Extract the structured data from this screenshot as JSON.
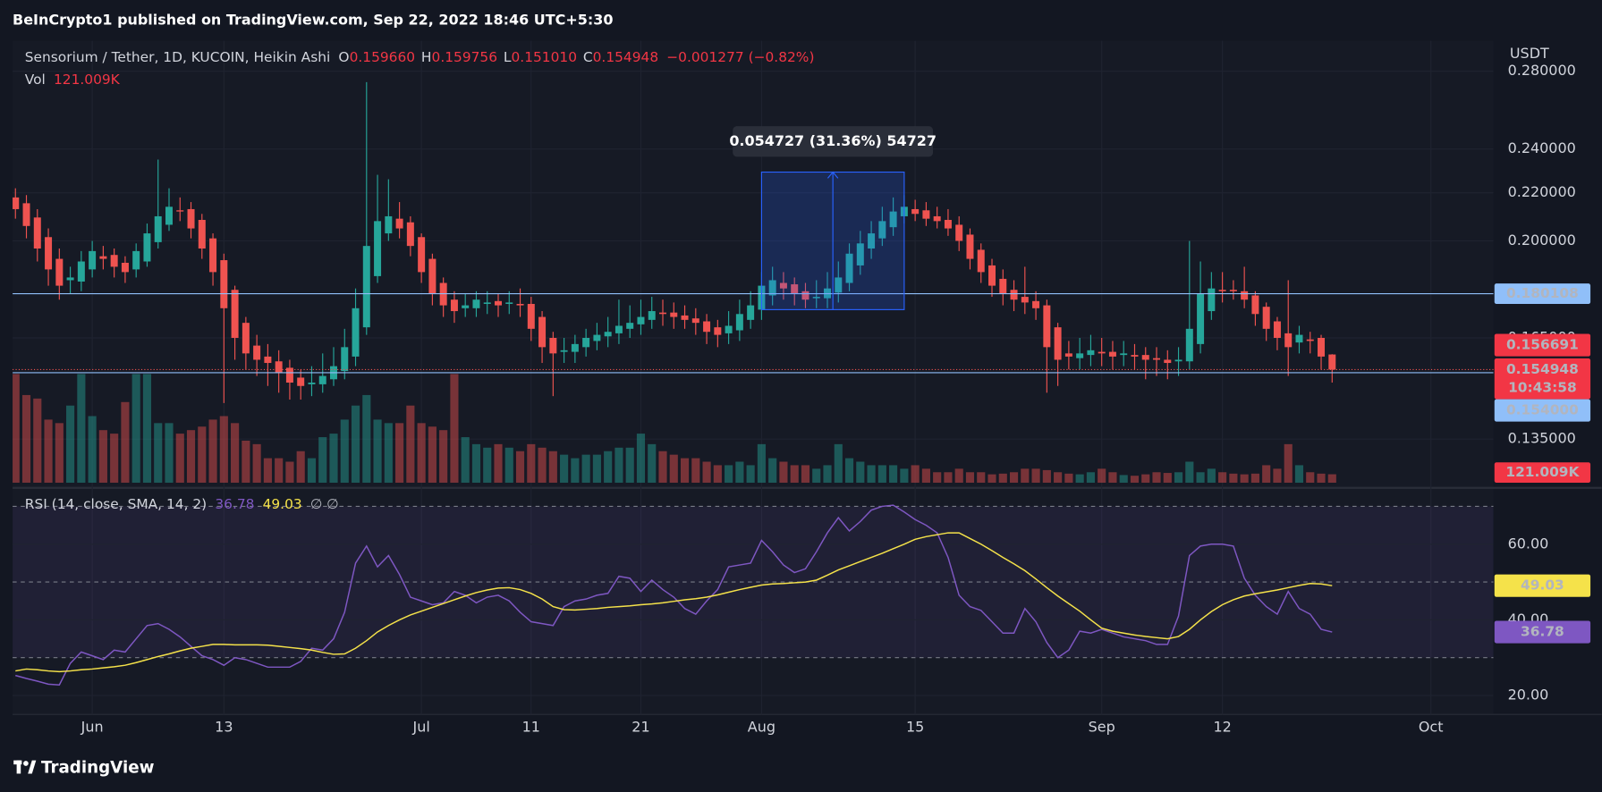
{
  "header": {
    "publisher": "BeInCrypto1 published on TradingView.com, Sep 22, 2022 18:46 UTC+5:30"
  },
  "footer": {
    "brand": "TradingView"
  },
  "chart_data": {
    "type": "candlestick",
    "title": "Sensorium / Tether, 1D, KUCOIN, Heikin Ashi",
    "ohlc_legend": [
      {
        "key": "O",
        "value": "0.159660"
      },
      {
        "key": "H",
        "value": "0.159756"
      },
      {
        "key": "L",
        "value": "0.151010"
      },
      {
        "key": "C",
        "value": "0.154948"
      }
    ],
    "change": "−0.001277 (−0.82%)",
    "volume_title": "Vol",
    "volume_value_label": "121.009K",
    "currency": "USDT",
    "log_scale": true,
    "up_color": "#26a69a",
    "down_color": "#ef5350",
    "open": [
      0.218,
      0.2155,
      0.2095,
      0.2015,
      0.193,
      0.185,
      0.1845,
      0.189,
      0.194,
      0.1945,
      0.1915,
      0.189,
      0.192,
      0.1995,
      0.2065,
      0.2125,
      0.213,
      0.2085,
      0.201,
      0.1925,
      0.1815,
      0.17,
      0.1625,
      0.159,
      0.1575,
      0.1555,
      0.1525,
      0.1505,
      0.1505,
      0.152,
      0.1545,
      0.159,
      0.1685,
      0.1865,
      0.203,
      0.209,
      0.2075,
      0.2015,
      0.193,
      0.184,
      0.178,
      0.175,
      0.175,
      0.1765,
      0.1775,
      0.1765,
      0.1765,
      0.1765,
      0.172,
      0.165,
      0.1605,
      0.1605,
      0.162,
      0.164,
      0.1655,
      0.1665,
      0.168,
      0.1695,
      0.171,
      0.1735,
      0.1735,
      0.1725,
      0.1715,
      0.1705,
      0.1685,
      0.1665,
      0.1675,
      0.171,
      0.1745,
      0.1795,
      0.184,
      0.1835,
      0.181,
      0.1785,
      0.1785,
      0.1805,
      0.184,
      0.1905,
      0.197,
      0.201,
      0.2055,
      0.21,
      0.213,
      0.2125,
      0.21,
      0.2085,
      0.2065,
      0.2025,
      0.1965,
      0.1905,
      0.1855,
      0.1815,
      0.179,
      0.1775,
      0.176,
      0.1685,
      0.16,
      0.1585,
      0.1595,
      0.1605,
      0.1605,
      0.1595,
      0.1595,
      0.1595,
      0.1585,
      0.158,
      0.1575,
      0.1575,
      0.163,
      0.174,
      0.1815,
      0.1815,
      0.181,
      0.1795,
      0.1755,
      0.1705,
      0.1665,
      0.1635,
      0.1645,
      0.165,
      0.15966
    ],
    "high": [
      0.222,
      0.219,
      0.213,
      0.205,
      0.197,
      0.19,
      0.196,
      0.2,
      0.198,
      0.197,
      0.194,
      0.199,
      0.207,
      0.235,
      0.222,
      0.218,
      0.216,
      0.211,
      0.203,
      0.195,
      0.183,
      0.172,
      0.166,
      0.163,
      0.161,
      0.158,
      0.155,
      0.156,
      0.16,
      0.162,
      0.168,
      0.182,
      0.274,
      0.228,
      0.226,
      0.216,
      0.21,
      0.203,
      0.195,
      0.186,
      0.181,
      0.18,
      0.181,
      0.181,
      0.18,
      0.181,
      0.182,
      0.179,
      0.174,
      0.167,
      0.165,
      0.166,
      0.168,
      0.17,
      0.172,
      0.178,
      0.176,
      0.178,
      0.179,
      0.178,
      0.177,
      0.176,
      0.175,
      0.173,
      0.171,
      0.174,
      0.178,
      0.181,
      0.188,
      0.19,
      0.188,
      0.186,
      0.184,
      0.185,
      0.188,
      0.192,
      0.199,
      0.204,
      0.208,
      0.214,
      0.218,
      0.219,
      0.217,
      0.216,
      0.214,
      0.213,
      0.21,
      0.205,
      0.199,
      0.193,
      0.189,
      0.185,
      0.19,
      0.181,
      0.178,
      0.17,
      0.164,
      0.165,
      0.166,
      0.165,
      0.164,
      0.164,
      0.163,
      0.162,
      0.162,
      0.161,
      0.162,
      0.2,
      0.192,
      0.188,
      0.188,
      0.185,
      0.19,
      0.181,
      0.177,
      0.172,
      0.185,
      0.169,
      0.167,
      0.166,
      0.159756
    ],
    "low": [
      0.209,
      0.201,
      0.192,
      0.183,
      0.178,
      0.18,
      0.181,
      0.186,
      0.189,
      0.186,
      0.184,
      0.186,
      0.19,
      0.197,
      0.204,
      0.208,
      0.201,
      0.193,
      0.183,
      0.145,
      0.158,
      0.155,
      0.153,
      0.15,
      0.148,
      0.146,
      0.146,
      0.147,
      0.148,
      0.15,
      0.152,
      0.156,
      0.166,
      0.184,
      0.2,
      0.201,
      0.194,
      0.184,
      0.176,
      0.172,
      0.17,
      0.172,
      0.172,
      0.173,
      0.172,
      0.173,
      0.172,
      0.164,
      0.157,
      0.147,
      0.157,
      0.157,
      0.159,
      0.161,
      0.162,
      0.163,
      0.165,
      0.166,
      0.168,
      0.169,
      0.168,
      0.168,
      0.166,
      0.163,
      0.162,
      0.163,
      0.164,
      0.168,
      0.171,
      0.176,
      0.178,
      0.176,
      0.175,
      0.175,
      0.175,
      0.177,
      0.181,
      0.187,
      0.193,
      0.198,
      0.202,
      0.207,
      0.208,
      0.206,
      0.205,
      0.202,
      0.196,
      0.189,
      0.184,
      0.179,
      0.176,
      0.174,
      0.173,
      0.171,
      0.148,
      0.15,
      0.155,
      0.155,
      0.156,
      0.156,
      0.155,
      0.156,
      0.155,
      0.152,
      0.153,
      0.152,
      0.153,
      0.155,
      0.16,
      0.171,
      0.177,
      0.178,
      0.175,
      0.169,
      0.164,
      0.161,
      0.153,
      0.16,
      0.16,
      0.155,
      0.15101
    ],
    "close": [
      0.213,
      0.206,
      0.197,
      0.189,
      0.183,
      0.186,
      0.192,
      0.196,
      0.193,
      0.19,
      0.188,
      0.196,
      0.203,
      0.21,
      0.214,
      0.212,
      0.205,
      0.197,
      0.188,
      0.175,
      0.165,
      0.16,
      0.158,
      0.157,
      0.154,
      0.151,
      0.15,
      0.151,
      0.153,
      0.156,
      0.162,
      0.175,
      0.198,
      0.208,
      0.21,
      0.205,
      0.198,
      0.188,
      0.18,
      0.176,
      0.174,
      0.176,
      0.178,
      0.177,
      0.176,
      0.177,
      0.176,
      0.168,
      0.162,
      0.16,
      0.161,
      0.163,
      0.165,
      0.166,
      0.167,
      0.169,
      0.17,
      0.172,
      0.174,
      0.173,
      0.172,
      0.171,
      0.17,
      0.167,
      0.166,
      0.169,
      0.173,
      0.176,
      0.183,
      0.185,
      0.182,
      0.18,
      0.178,
      0.179,
      0.182,
      0.186,
      0.195,
      0.199,
      0.203,
      0.208,
      0.212,
      0.214,
      0.211,
      0.209,
      0.208,
      0.205,
      0.2,
      0.193,
      0.188,
      0.183,
      0.18,
      0.178,
      0.177,
      0.175,
      0.162,
      0.158,
      0.159,
      0.16,
      0.161,
      0.16,
      0.159,
      0.16,
      0.159,
      0.158,
      0.158,
      0.157,
      0.158,
      0.168,
      0.18,
      0.182,
      0.181,
      0.181,
      0.178,
      0.173,
      0.168,
      0.165,
      0.162,
      0.166,
      0.164,
      0.159,
      0.154948
    ],
    "volume": [
      1550000,
      1250000,
      1200000,
      900000,
      850000,
      1100000,
      1550000,
      950000,
      750000,
      700000,
      1150000,
      1550000,
      1550000,
      850000,
      850000,
      700000,
      750000,
      800000,
      900000,
      950000,
      850000,
      600000,
      550000,
      350000,
      350000,
      300000,
      450000,
      350000,
      650000,
      700000,
      900000,
      1100000,
      1250000,
      900000,
      850000,
      850000,
      1100000,
      850000,
      800000,
      750000,
      1550000,
      650000,
      550000,
      500000,
      550000,
      500000,
      450000,
      550000,
      500000,
      450000,
      400000,
      350000,
      400000,
      400000,
      450000,
      500000,
      500000,
      700000,
      550000,
      450000,
      400000,
      350000,
      350000,
      300000,
      250000,
      250000,
      300000,
      250000,
      550000,
      350000,
      300000,
      250000,
      250000,
      200000,
      250000,
      550000,
      350000,
      300000,
      250000,
      250000,
      250000,
      200000,
      250000,
      200000,
      150000,
      150000,
      200000,
      150000,
      150000,
      120000,
      130000,
      150000,
      200000,
      200000,
      180000,
      150000,
      130000,
      120000,
      150000,
      200000,
      150000,
      110000,
      100000,
      120000,
      150000,
      140000,
      150000,
      300000,
      150000,
      200000,
      150000,
      130000,
      120000,
      130000,
      250000,
      200000,
      550000,
      250000,
      150000,
      130000,
      121009
    ],
    "volume_lim": [
      0,
      1600000
    ],
    "ylim": [
      0.1238,
      0.2974
    ],
    "yticks": [
      {
        "value": 0.28,
        "label": "0.280000"
      },
      {
        "value": 0.24,
        "label": "0.240000"
      },
      {
        "value": 0.22,
        "label": "0.220000"
      },
      {
        "value": 0.2,
        "label": "0.200000"
      },
      {
        "value": 0.165,
        "label": "0.165000"
      },
      {
        "value": 0.135,
        "label": "0.135000"
      }
    ],
    "xlim": [
      -0.26,
      134.7
    ],
    "xticks": [
      {
        "value": 7,
        "label": "Jun"
      },
      {
        "value": 19,
        "label": "13"
      },
      {
        "value": 37,
        "label": "Jul"
      },
      {
        "value": 47,
        "label": "11"
      },
      {
        "value": 57,
        "label": "21"
      },
      {
        "value": 68,
        "label": "Aug"
      },
      {
        "value": 82,
        "label": "15"
      },
      {
        "value": 99,
        "label": "Sep"
      },
      {
        "value": 110,
        "label": "12"
      },
      {
        "value": 129,
        "label": "Oct"
      }
    ],
    "horizontal_lines": [
      0.180108,
      {
        "value": 0.154,
        "label": "0.154000"
      }
    ],
    "line_color": "#90bff9",
    "price_marker": 0.156691,
    "countdown": "10:43:58",
    "measure": {
      "start_index": 68,
      "end_index": 81,
      "start_price": 0.17451,
      "end_price": 0.229237,
      "label": "0.054727 (31.36%) 54727"
    },
    "rsi": {
      "title": "RSI (14, close, SMA, 14, 2)",
      "extra": "∅ ∅",
      "color": "#7e57c2",
      "values": [
        25.3,
        24.5,
        23.8,
        23.0,
        22.8,
        28.5,
        31.5,
        30.5,
        29.5,
        32.0,
        31.5,
        35.0,
        38.5,
        39.0,
        37.5,
        35.5,
        33.0,
        30.5,
        29.5,
        28.0,
        30.0,
        29.5,
        28.5,
        27.5,
        27.5,
        27.5,
        29.0,
        32.5,
        32.0,
        35.0,
        42.0,
        55.0,
        59.5,
        54.0,
        57.0,
        52.0,
        46.0,
        45.0,
        44.0,
        44.5,
        47.5,
        46.5,
        44.5,
        46.0,
        46.5,
        45.0,
        42.0,
        39.5,
        39.0,
        38.5,
        43.5,
        45.0,
        45.5,
        46.5,
        47.0,
        51.5,
        51.0,
        47.5,
        50.5,
        48.0,
        46.0,
        43.0,
        41.5,
        45.0,
        48.0,
        54.0,
        54.5,
        55.0,
        61.0,
        58.0,
        54.5,
        52.5,
        53.5,
        58.0,
        63.0,
        67.0,
        63.5,
        66.0,
        69.0,
        70.0,
        70.3,
        68.5,
        66.5,
        65.0,
        63.0,
        56.5,
        46.5,
        43.5,
        42.5,
        39.5,
        36.5,
        36.5,
        43.0,
        39.5,
        34.0,
        30.0,
        32.0,
        37.0,
        36.5,
        37.5,
        36.5,
        35.5,
        35.0,
        34.5,
        33.5,
        33.5,
        41.0,
        57.0,
        59.5,
        60.0,
        60.0,
        59.5,
        51.0,
        46.5,
        43.5,
        41.5,
        47.5,
        43.0,
        41.5,
        37.5,
        36.78
      ],
      "sma": {
        "color": "#f5e24a",
        "values": [
          26.5,
          27.0,
          26.8,
          26.5,
          26.3,
          26.5,
          26.8,
          27.0,
          27.3,
          27.6,
          28.0,
          28.7,
          29.5,
          30.3,
          31.0,
          31.8,
          32.5,
          33.0,
          33.5,
          33.5,
          33.4,
          33.4,
          33.4,
          33.3,
          33.0,
          32.7,
          32.4,
          32.0,
          31.4,
          30.9,
          31.0,
          32.5,
          34.5,
          36.8,
          38.5,
          40.0,
          41.3,
          42.3,
          43.3,
          44.3,
          45.3,
          46.3,
          47.2,
          47.9,
          48.4,
          48.5,
          48.0,
          47.0,
          45.5,
          43.5,
          42.7,
          42.6,
          42.8,
          43.0,
          43.3,
          43.5,
          43.7,
          44.0,
          44.2,
          44.5,
          44.9,
          45.3,
          45.6,
          46.0,
          46.6,
          47.3,
          48.0,
          48.6,
          49.2,
          49.5,
          49.6,
          49.8,
          50.0,
          50.5,
          51.8,
          53.2,
          54.3,
          55.4,
          56.5,
          57.6,
          58.8,
          60.0,
          61.3,
          62.0,
          62.5,
          63.0,
          63.0,
          61.5,
          60.0,
          58.3,
          56.5,
          54.8,
          53.0,
          50.8,
          48.5,
          46.3,
          44.3,
          42.3,
          40.0,
          37.8,
          37.0,
          36.5,
          36.0,
          35.6,
          35.3,
          35.0,
          35.6,
          37.5,
          40.0,
          42.2,
          44.0,
          45.3,
          46.3,
          46.9,
          47.4,
          47.9,
          48.5,
          49.1,
          49.6,
          49.5,
          49.03
        ]
      },
      "ylim": [
        15,
        73
      ],
      "yticks": [
        {
          "value": 60,
          "label": "60.00"
        },
        {
          "value": 40,
          "label": "40.00"
        },
        {
          "value": 20,
          "label": "20.00"
        }
      ],
      "bands": [
        30,
        50,
        70
      ]
    }
  }
}
